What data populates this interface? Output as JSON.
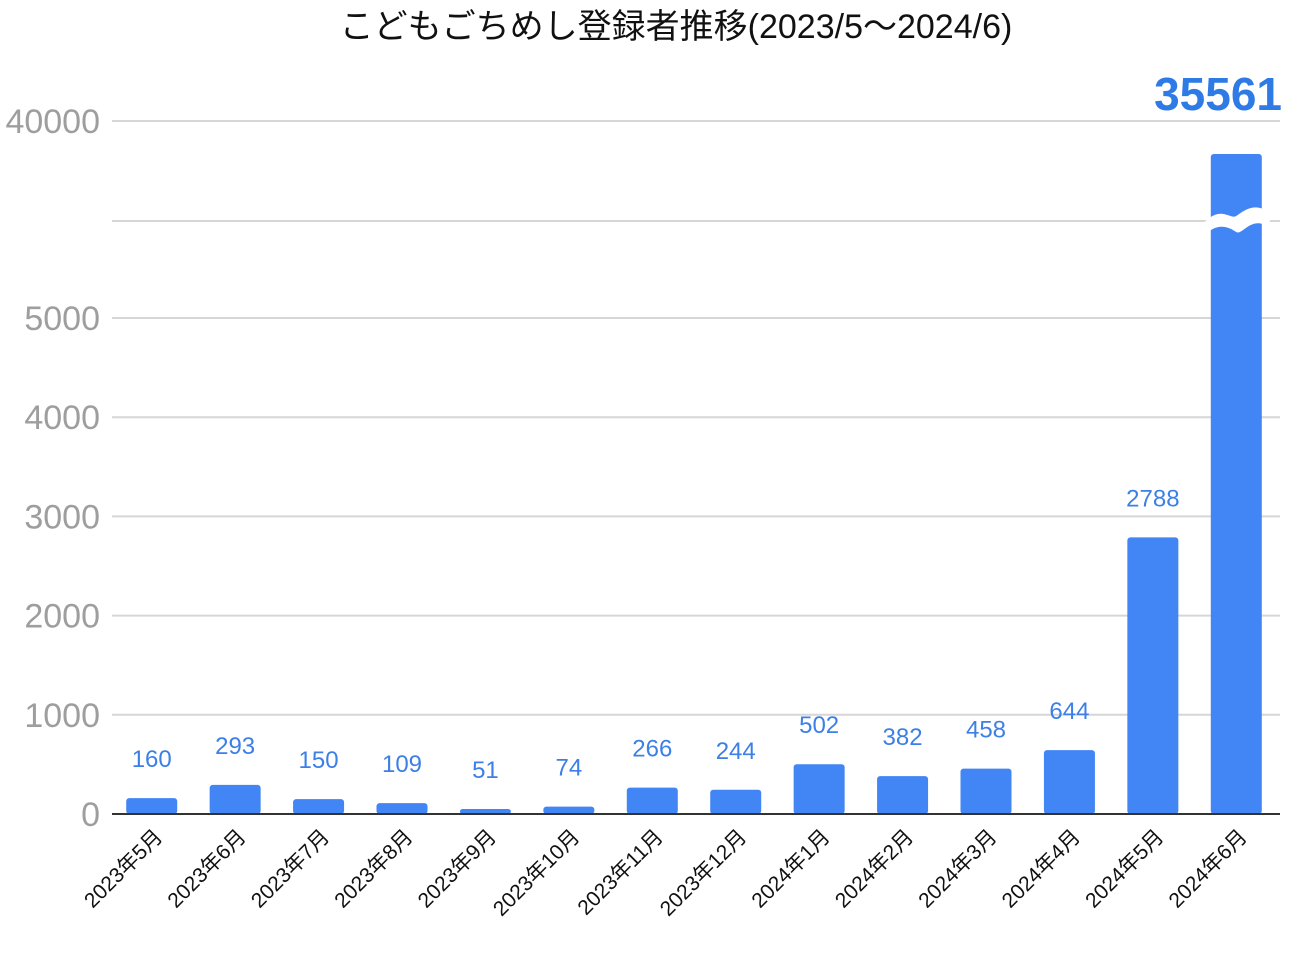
{
  "chart_data": {
    "type": "bar",
    "title": "こどもごちめし登録者推移(2023/5〜2024/6)",
    "xlabel": "",
    "ylabel": "",
    "categories": [
      "2023年5月",
      "2023年6月",
      "2023年7月",
      "2023年8月",
      "2023年9月",
      "2023年10月",
      "2023年11月",
      "2023年12月",
      "2024年1月",
      "2024年2月",
      "2024年3月",
      "2024年4月",
      "2024年5月",
      "2024年6月"
    ],
    "values": [
      160,
      293,
      150,
      109,
      51,
      74,
      266,
      244,
      502,
      382,
      458,
      644,
      2788,
      35561
    ],
    "value_labels": [
      "160",
      "293",
      "150",
      "109",
      "51",
      "74",
      "266",
      "244",
      "502",
      "382",
      "458",
      "644",
      "2788",
      "35561"
    ],
    "y_ticks": [
      "0",
      "1000",
      "2000",
      "3000",
      "4000",
      "5000",
      "40000"
    ],
    "ylim": [
      0,
      40000
    ],
    "y_axis_break": true,
    "broken_bar_marker": true,
    "grid": true,
    "legend": "none",
    "bar_color": "#4285f4",
    "label_color": "#3c7fe6",
    "highlight_label_color": "#2f7be6"
  }
}
